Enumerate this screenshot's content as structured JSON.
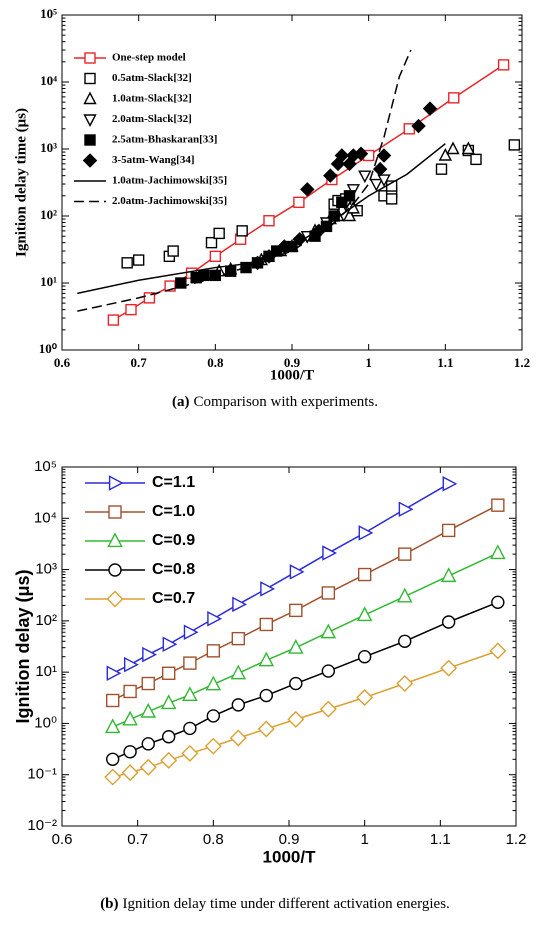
{
  "chart_data": [
    {
      "type": "line",
      "caption_label": "(a)",
      "caption": "Comparison with experiments.",
      "x_label": "1000/T",
      "y_label": "Ignition delay time (μs)",
      "log_y": true,
      "xlim": [
        0.6,
        1.2
      ],
      "xticks": [
        0.6,
        0.7,
        0.8,
        0.9,
        1,
        1.1,
        1.2
      ],
      "ylim": [
        1,
        100000
      ],
      "yticks": [
        {
          "value": 1,
          "label": "10⁰"
        },
        {
          "value": 10,
          "label": "10¹"
        },
        {
          "value": 100,
          "label": "10²"
        },
        {
          "value": 1000,
          "label": "10³"
        },
        {
          "value": 10000,
          "label": "10⁴"
        },
        {
          "value": 100000,
          "label": "10⁵"
        }
      ],
      "legend": "upper left",
      "series": [
        {
          "name": "One-step model",
          "color": "#e8262a",
          "line": "solid",
          "marker": "square-open",
          "x": [
            0.667,
            0.69,
            0.714,
            0.741,
            0.769,
            0.8,
            0.833,
            0.87,
            0.909,
            0.952,
            1.0,
            1.053,
            1.111,
            1.176
          ],
          "values": [
            2.8,
            4,
            6,
            9,
            14,
            25,
            45,
            85,
            160,
            350,
            800,
            2000,
            5800,
            18000
          ]
        },
        {
          "name": "0.5atm-Slack[32]",
          "color": "#000000",
          "line": "none",
          "marker": "square-open",
          "x": [
            0.685,
            0.7,
            0.74,
            0.745,
            0.795,
            0.805,
            0.835,
            0.955,
            0.96,
            0.97,
            0.985,
            1.02,
            1.03,
            1.03,
            1.03,
            1.095,
            1.13,
            1.14,
            1.19
          ],
          "values": [
            20,
            22,
            25,
            30,
            40,
            55,
            60,
            150,
            170,
            180,
            120,
            200,
            220,
            180,
            280,
            500,
            950,
            700,
            1150
          ]
        },
        {
          "name": "1.0atm-Slack[32]",
          "color": "#000000",
          "line": "none",
          "marker": "triangle-up-open",
          "x": [
            0.805,
            0.82,
            0.86,
            0.885,
            0.9,
            0.93,
            0.95,
            0.96,
            0.975,
            0.98,
            1.1,
            1.11,
            1.13
          ],
          "values": [
            15,
            16,
            22,
            30,
            35,
            60,
            90,
            100,
            100,
            130,
            800,
            1000,
            1000
          ]
        },
        {
          "name": "2.0atm-Slack[32]",
          "color": "#000000",
          "line": "none",
          "marker": "triangle-down-open",
          "x": [
            0.92,
            0.945,
            0.97,
            0.98,
            0.995,
            1.01,
            1.02
          ],
          "values": [
            50,
            80,
            150,
            250,
            400,
            300,
            350
          ]
        },
        {
          "name": "2.5atm-Bhaskaran[33]",
          "color": "#000000",
          "line": "none",
          "marker": "square-filled",
          "x": [
            0.755,
            0.775,
            0.785,
            0.8,
            0.82,
            0.84,
            0.855,
            0.87,
            0.88,
            0.9,
            0.93,
            0.945,
            0.955,
            0.965,
            0.975
          ],
          "values": [
            10,
            12,
            13,
            13,
            15,
            17,
            20,
            25,
            30,
            35,
            50,
            70,
            100,
            160,
            200
          ]
        },
        {
          "name": "3-5atm-Wang[34]",
          "color": "#000000",
          "line": "none",
          "marker": "diamond-filled",
          "x": [
            0.855,
            0.87,
            0.89,
            0.91,
            0.92,
            0.935,
            0.95,
            0.96,
            0.965,
            0.975,
            0.98,
            0.99,
            1.015,
            1.02,
            1.065,
            1.08
          ],
          "values": [
            20,
            25,
            35,
            45,
            250,
            60,
            400,
            600,
            800,
            600,
            800,
            850,
            500,
            800,
            2200,
            4000
          ]
        },
        {
          "name": "1.0atm-Jachimowski[35]",
          "color": "#000000",
          "line": "solid",
          "marker": "none",
          "x": [
            0.62,
            0.7,
            0.8,
            0.85,
            0.9,
            0.95,
            1.0,
            1.05,
            1.1
          ],
          "values": [
            7,
            11,
            17,
            20,
            35,
            80,
            200,
            420,
            1200
          ]
        },
        {
          "name": "2.0atm-Jachimowski[35]",
          "color": "#000000",
          "line": "dashed",
          "marker": "none",
          "x": [
            0.62,
            0.7,
            0.8,
            0.9,
            0.95,
            0.98,
            1.0,
            1.02,
            1.04,
            1.055
          ],
          "values": [
            3.8,
            6,
            12,
            30,
            70,
            150,
            300,
            1500,
            12000,
            30000
          ]
        }
      ]
    },
    {
      "type": "line",
      "caption_label": "(b)",
      "caption": "Ignition delay time under different activation energies.",
      "x_label": "1000/T",
      "y_label": "Ignition delay (μs)",
      "log_y": true,
      "xlim": [
        0.6,
        1.2
      ],
      "xticks": [
        0.6,
        0.7,
        0.8,
        0.9,
        1,
        1.1,
        1.2
      ],
      "ylim": [
        0.01,
        100000
      ],
      "yticks": [
        {
          "value": 0.01,
          "label": "10⁻²"
        },
        {
          "value": 0.1,
          "label": "10⁻¹"
        },
        {
          "value": 1,
          "label": "10⁰"
        },
        {
          "value": 10,
          "label": "10¹"
        },
        {
          "value": 100,
          "label": "10²"
        },
        {
          "value": 1000,
          "label": "10³"
        },
        {
          "value": 10000,
          "label": "10⁴"
        },
        {
          "value": 100000,
          "label": "10⁵"
        }
      ],
      "legend": "upper left",
      "series": [
        {
          "name": "C=1.1",
          "color": "#2a2ad8",
          "line": "solid",
          "marker": "triangle-right-open",
          "x": [
            0.667,
            0.69,
            0.714,
            0.741,
            0.769,
            0.8,
            0.833,
            0.87,
            0.909,
            0.952,
            1.0,
            1.053,
            1.111
          ],
          "values": [
            9.5,
            14,
            22,
            35,
            60,
            110,
            210,
            420,
            900,
            2100,
            5200,
            15000,
            47000
          ]
        },
        {
          "name": "C=1.0",
          "color": "#a0522d",
          "line": "solid",
          "marker": "square-open",
          "x": [
            0.667,
            0.69,
            0.714,
            0.741,
            0.769,
            0.8,
            0.833,
            0.87,
            0.909,
            0.952,
            1.0,
            1.053,
            1.111,
            1.176
          ],
          "values": [
            2.8,
            4.2,
            6,
            9.5,
            15,
            26,
            45,
            85,
            160,
            350,
            800,
            2000,
            5800,
            18000
          ]
        },
        {
          "name": "C=0.9",
          "color": "#33b833",
          "line": "solid",
          "marker": "triangle-up-open",
          "x": [
            0.667,
            0.69,
            0.714,
            0.741,
            0.769,
            0.8,
            0.833,
            0.87,
            0.909,
            0.952,
            1.0,
            1.053,
            1.111,
            1.176
          ],
          "values": [
            0.85,
            1.2,
            1.7,
            2.5,
            3.6,
            5.8,
            9.5,
            17,
            30,
            60,
            130,
            300,
            750,
            2100
          ]
        },
        {
          "name": "C=0.8",
          "color": "#000000",
          "line": "solid",
          "marker": "circle-open",
          "x": [
            0.667,
            0.69,
            0.714,
            0.741,
            0.769,
            0.8,
            0.833,
            0.87,
            0.909,
            0.952,
            1.0,
            1.053,
            1.111,
            1.176
          ],
          "values": [
            0.2,
            0.28,
            0.4,
            0.55,
            0.8,
            1.4,
            2.3,
            3.5,
            6,
            10.5,
            20,
            40,
            95,
            230
          ]
        },
        {
          "name": "C=0.7",
          "color": "#d9a030",
          "line": "solid",
          "marker": "diamond-open",
          "x": [
            0.667,
            0.69,
            0.714,
            0.741,
            0.769,
            0.8,
            0.833,
            0.87,
            0.909,
            0.952,
            1.0,
            1.053,
            1.111,
            1.176
          ],
          "values": [
            0.09,
            0.11,
            0.14,
            0.19,
            0.26,
            0.36,
            0.52,
            0.78,
            1.2,
            1.9,
            3.2,
            6,
            12,
            26
          ]
        }
      ]
    }
  ]
}
